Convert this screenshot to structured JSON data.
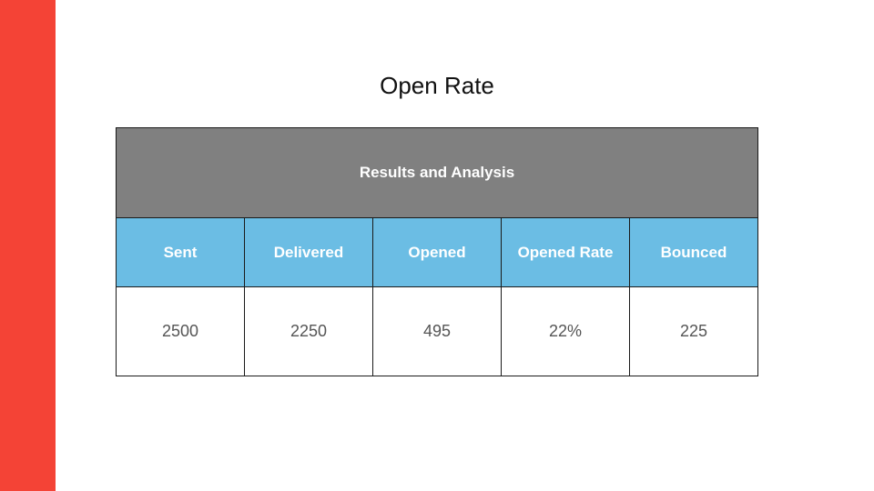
{
  "slide": {
    "title": "Open Rate"
  },
  "colors": {
    "accent": "#f44336",
    "header_bg": "#808080",
    "column_header_bg": "#6bbde4"
  },
  "table": {
    "header": "Results and Analysis",
    "columns": [
      "Sent",
      "Delivered",
      "Opened",
      "Opened Rate",
      "Bounced"
    ],
    "values": [
      "2500",
      "2250",
      "495",
      "22%",
      "225"
    ]
  }
}
